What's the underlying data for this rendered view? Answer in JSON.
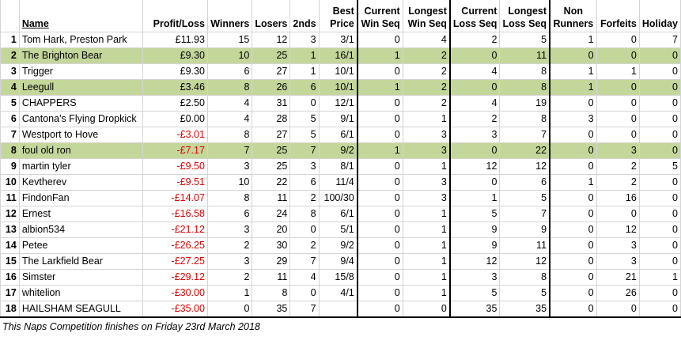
{
  "headers": {
    "rank": "",
    "name": "Name",
    "profit_loss": "Profit/Loss",
    "winners": "Winners",
    "losers": "Losers",
    "seconds": "2nds",
    "best_price": [
      "Best",
      "Price"
    ],
    "current_win_seq": [
      "Current",
      "Win Seq"
    ],
    "longest_win_seq": [
      "Longest",
      "Win Seq"
    ],
    "current_loss_seq": [
      "Current",
      "Loss Seq"
    ],
    "longest_loss_seq": [
      "Longest",
      "Loss Seq"
    ],
    "non_runners": [
      "Non",
      "Runners"
    ],
    "forfeits": "Forfeits",
    "holiday": "Holiday"
  },
  "rows": [
    {
      "rank": "1",
      "name": "Tom Hark, Preston Park",
      "pl": "£11.93",
      "neg": false,
      "hl": false,
      "winners": "15",
      "losers": "12",
      "seconds": "3",
      "best": "3/1",
      "cws": "0",
      "lws": "4",
      "cls": "2",
      "lls": "5",
      "nr": "1",
      "forfeits": "0",
      "holiday": "7"
    },
    {
      "rank": "2",
      "name": "The Brighton Bear",
      "pl": "£9.30",
      "neg": false,
      "hl": true,
      "winners": "10",
      "losers": "25",
      "seconds": "1",
      "best": "16/1",
      "cws": "1",
      "lws": "2",
      "cls": "0",
      "lls": "11",
      "nr": "0",
      "forfeits": "0",
      "holiday": "0"
    },
    {
      "rank": "3",
      "name": "Trigger",
      "pl": "£9.30",
      "neg": false,
      "hl": false,
      "winners": "6",
      "losers": "27",
      "seconds": "1",
      "best": "10/1",
      "cws": "0",
      "lws": "2",
      "cls": "4",
      "lls": "8",
      "nr": "1",
      "forfeits": "1",
      "holiday": "0"
    },
    {
      "rank": "4",
      "name": "Leegull",
      "pl": "£3.46",
      "neg": false,
      "hl": true,
      "winners": "8",
      "losers": "26",
      "seconds": "6",
      "best": "10/1",
      "cws": "1",
      "lws": "2",
      "cls": "0",
      "lls": "8",
      "nr": "1",
      "forfeits": "0",
      "holiday": "0"
    },
    {
      "rank": "5",
      "name": "CHAPPERS",
      "pl": "£2.50",
      "neg": false,
      "hl": false,
      "winners": "4",
      "losers": "31",
      "seconds": "0",
      "best": "12/1",
      "cws": "0",
      "lws": "2",
      "cls": "4",
      "lls": "19",
      "nr": "0",
      "forfeits": "0",
      "holiday": "0"
    },
    {
      "rank": "6",
      "name": "Cantona's Flying Dropkick",
      "pl": "£0.00",
      "neg": false,
      "hl": false,
      "winners": "4",
      "losers": "28",
      "seconds": "5",
      "best": "9/1",
      "cws": "0",
      "lws": "1",
      "cls": "2",
      "lls": "8",
      "nr": "3",
      "forfeits": "0",
      "holiday": "0"
    },
    {
      "rank": "7",
      "name": "Westport to Hove",
      "pl": "-£3.01",
      "neg": true,
      "hl": false,
      "winners": "8",
      "losers": "27",
      "seconds": "5",
      "best": "6/1",
      "cws": "0",
      "lws": "3",
      "cls": "3",
      "lls": "7",
      "nr": "0",
      "forfeits": "0",
      "holiday": "0"
    },
    {
      "rank": "8",
      "name": "foul old ron",
      "pl": "-£7.17",
      "neg": true,
      "hl": true,
      "winners": "7",
      "losers": "25",
      "seconds": "7",
      "best": "9/2",
      "cws": "1",
      "lws": "3",
      "cls": "0",
      "lls": "22",
      "nr": "0",
      "forfeits": "3",
      "holiday": "0"
    },
    {
      "rank": "9",
      "name": "martin tyler",
      "pl": "-£9.50",
      "neg": true,
      "hl": false,
      "winners": "3",
      "losers": "25",
      "seconds": "3",
      "best": "8/1",
      "cws": "0",
      "lws": "1",
      "cls": "12",
      "lls": "12",
      "nr": "0",
      "forfeits": "2",
      "holiday": "5"
    },
    {
      "rank": "10",
      "name": "Kevtherev",
      "pl": "-£9.51",
      "neg": true,
      "hl": false,
      "winners": "10",
      "losers": "22",
      "seconds": "6",
      "best": "11/4",
      "cws": "0",
      "lws": "3",
      "cls": "0",
      "lls": "6",
      "nr": "1",
      "forfeits": "2",
      "holiday": "0"
    },
    {
      "rank": "11",
      "name": "FindonFan",
      "pl": "-£14.07",
      "neg": true,
      "hl": false,
      "winners": "8",
      "losers": "11",
      "seconds": "2",
      "best": "100/30",
      "cws": "0",
      "lws": "3",
      "cls": "1",
      "lls": "5",
      "nr": "0",
      "forfeits": "16",
      "holiday": "0"
    },
    {
      "rank": "12",
      "name": "Ernest",
      "pl": "-£16.58",
      "neg": true,
      "hl": false,
      "winners": "6",
      "losers": "24",
      "seconds": "8",
      "best": "6/1",
      "cws": "0",
      "lws": "1",
      "cls": "5",
      "lls": "7",
      "nr": "0",
      "forfeits": "0",
      "holiday": "0"
    },
    {
      "rank": "13",
      "name": "albion534",
      "pl": "-£21.12",
      "neg": true,
      "hl": false,
      "winners": "3",
      "losers": "20",
      "seconds": "0",
      "best": "5/1",
      "cws": "0",
      "lws": "1",
      "cls": "9",
      "lls": "9",
      "nr": "0",
      "forfeits": "12",
      "holiday": "0"
    },
    {
      "rank": "14",
      "name": "Petee",
      "pl": "-£26.25",
      "neg": true,
      "hl": false,
      "winners": "2",
      "losers": "30",
      "seconds": "2",
      "best": "9/2",
      "cws": "0",
      "lws": "1",
      "cls": "9",
      "lls": "11",
      "nr": "0",
      "forfeits": "3",
      "holiday": "0"
    },
    {
      "rank": "15",
      "name": "The Larkfield Bear",
      "pl": "-£27.25",
      "neg": true,
      "hl": false,
      "winners": "3",
      "losers": "29",
      "seconds": "7",
      "best": "9/4",
      "cws": "0",
      "lws": "1",
      "cls": "12",
      "lls": "12",
      "nr": "0",
      "forfeits": "3",
      "holiday": "0"
    },
    {
      "rank": "16",
      "name": "Simster",
      "pl": "-£29.12",
      "neg": true,
      "hl": false,
      "winners": "2",
      "losers": "11",
      "seconds": "4",
      "best": "15/8",
      "cws": "0",
      "lws": "1",
      "cls": "3",
      "lls": "8",
      "nr": "0",
      "forfeits": "21",
      "holiday": "1"
    },
    {
      "rank": "17",
      "name": "whitelion",
      "pl": "-£30.00",
      "neg": true,
      "hl": false,
      "winners": "1",
      "losers": "8",
      "seconds": "0",
      "best": "4/1",
      "cws": "0",
      "lws": "1",
      "cls": "5",
      "lls": "5",
      "nr": "0",
      "forfeits": "26",
      "holiday": "0"
    },
    {
      "rank": "18",
      "name": "HAILSHAM SEAGULL",
      "pl": "-£35.00",
      "neg": true,
      "hl": false,
      "winners": "0",
      "losers": "35",
      "seconds": "7",
      "best": "",
      "cws": "0",
      "lws": "0",
      "cls": "35",
      "lls": "35",
      "nr": "0",
      "forfeits": "0",
      "holiday": "0"
    }
  ],
  "footnote": "This Naps Competition finishes on Friday 23rd March 2018",
  "colors": {
    "highlight": "#c4d79b",
    "negative": "#e00000",
    "gridline": "#d4d4d4"
  }
}
